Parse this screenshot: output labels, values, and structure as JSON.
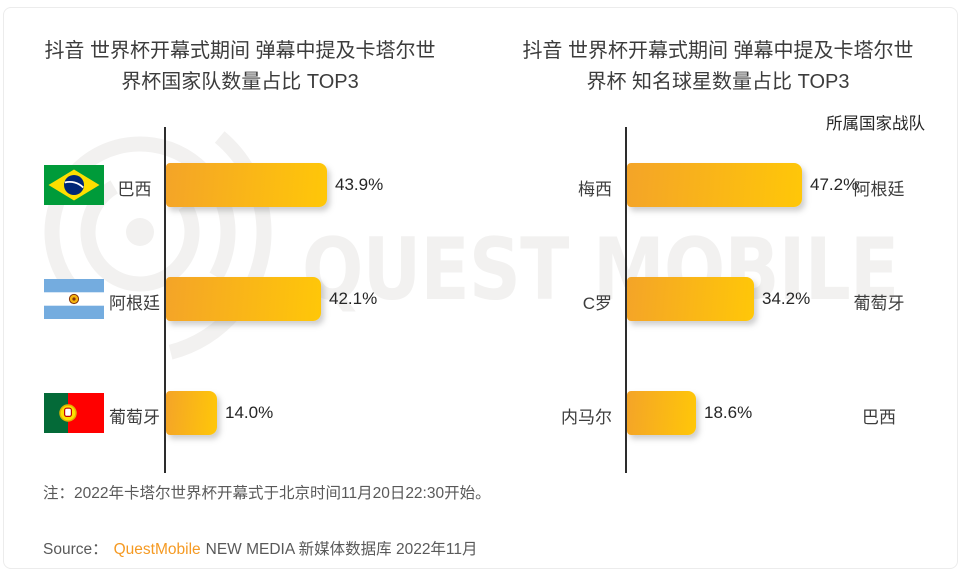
{
  "watermark": {
    "text": "QUEST MOBILE"
  },
  "charts": [
    {
      "title_line1": "抖音 世界杯开幕式期间 弹幕中提及卡塔尔世",
      "title_line2": "界杯国家队数量占比 TOP3",
      "rows": [
        {
          "label": "巴西",
          "flag": "flag-brazil",
          "value_label": "43.9%"
        },
        {
          "label": "阿根廷",
          "flag": "flag-argentina",
          "value_label": "42.1%"
        },
        {
          "label": "葡萄牙",
          "flag": "flag-portugal",
          "value_label": "14.0%"
        }
      ]
    },
    {
      "title_line1": "抖音 世界杯开幕式期间 弹幕中提及卡塔尔世",
      "title_line2": "界杯 知名球星数量占比 TOP3",
      "column_header": "所属国家战队",
      "rows": [
        {
          "label": "梅西",
          "value_label": "47.2%",
          "team": "阿根廷"
        },
        {
          "label": "C罗",
          "value_label": "34.2%",
          "team": "葡萄牙"
        },
        {
          "label": "内马尔",
          "value_label": "18.6%",
          "team": "巴西"
        }
      ]
    }
  ],
  "note": "注：2022年卡塔尔世界杯开幕式于北京时间11月20日22:30开始。",
  "source": {
    "prefix": "Source：",
    "brand": "QuestMobile",
    "suffix": "NEW MEDIA 新媒体数据库 2022年11月"
  },
  "colors": {
    "bar_gradient_start": "#f4a428",
    "bar_gradient_end": "#ffc708",
    "axis": "#2d2d2d",
    "title_text": "#3c3c3c",
    "note_text": "#595959",
    "brand_orange": "#f59a23",
    "watermark": "#f2f1f0"
  },
  "chart_data": [
    {
      "type": "bar",
      "orientation": "horizontal",
      "title": "抖音 世界杯开幕式期间 弹幕中提及卡塔尔世界杯国家队数量占比 TOP3",
      "categories": [
        "巴西",
        "阿根廷",
        "葡萄牙"
      ],
      "values": [
        43.9,
        42.1,
        14.0
      ],
      "unit": "%",
      "xlim": [
        0,
        50
      ],
      "grid": false,
      "legend": false,
      "category_icons": [
        "flag-brazil",
        "flag-argentina",
        "flag-portugal"
      ]
    },
    {
      "type": "bar",
      "orientation": "horizontal",
      "title": "抖音 世界杯开幕式期间 弹幕中提及卡塔尔世界杯 知名球星数量占比 TOP3",
      "categories": [
        "梅西",
        "C罗",
        "内马尔"
      ],
      "values": [
        47.2,
        34.2,
        18.6
      ],
      "unit": "%",
      "xlim": [
        0,
        50
      ],
      "grid": false,
      "legend": false,
      "annotation_column_header": "所属国家战队",
      "annotations": [
        "阿根廷",
        "葡萄牙",
        "巴西"
      ]
    }
  ]
}
